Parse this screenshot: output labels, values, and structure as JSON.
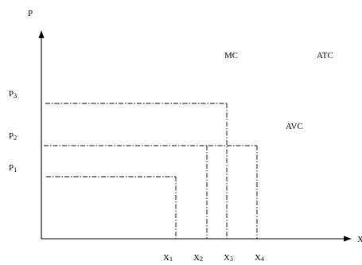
{
  "axes": {
    "y_label": "P",
    "x_label": "X"
  },
  "curves": {
    "mc": "MC",
    "atc": "ATC",
    "avc": "AVC"
  },
  "price_levels": [
    {
      "name": "P",
      "sub": "3"
    },
    {
      "name": "P",
      "sub": "2"
    },
    {
      "name": "P",
      "sub": "1"
    }
  ],
  "quantity_levels": [
    {
      "name": "X",
      "sub": "1"
    },
    {
      "name": "X",
      "sub": "2"
    },
    {
      "name": "X",
      "sub": "3"
    },
    {
      "name": "X",
      "sub": "4"
    }
  ]
}
